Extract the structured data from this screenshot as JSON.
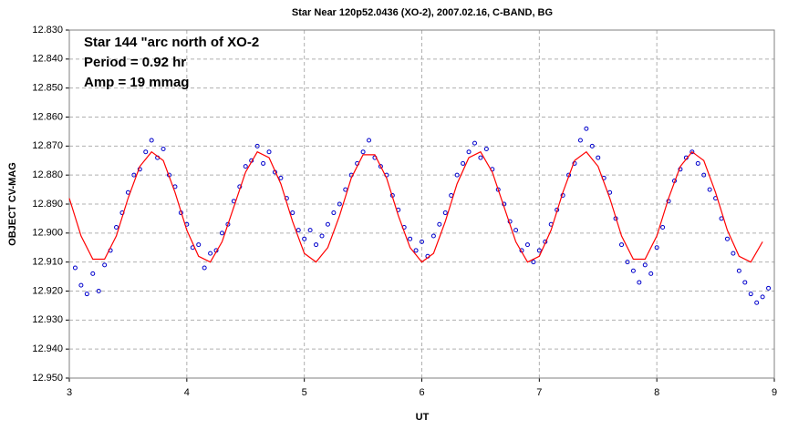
{
  "chart_data": {
    "type": "scatter",
    "title": "Star Near 120p52.0436 (XO-2), 2007.02.16, C-BAND, BG",
    "annotations": [
      "Star 144 \"arc north of XO-2",
      "Period = 0.92 hr",
      "Amp = 19 mmag"
    ],
    "xlabel": "UT",
    "ylabel": "OBJECT CV-MAG",
    "xlim": [
      3,
      9
    ],
    "xticks": [
      3,
      4,
      5,
      6,
      7,
      8,
      9
    ],
    "ylim": [
      12.95,
      12.83
    ],
    "yticks": [
      {
        "value": 12.83,
        "label": "12.830"
      },
      {
        "value": 12.84,
        "label": "12.840"
      },
      {
        "value": 12.85,
        "label": "12.850"
      },
      {
        "value": 12.86,
        "label": "12.860"
      },
      {
        "value": 12.87,
        "label": "12.870"
      },
      {
        "value": 12.88,
        "label": "12.880"
      },
      {
        "value": 12.89,
        "label": "12.890"
      },
      {
        "value": 12.9,
        "label": "12.900"
      },
      {
        "value": 12.91,
        "label": "12.910"
      },
      {
        "value": 12.92,
        "label": "12.920"
      },
      {
        "value": 12.93,
        "label": "12.930"
      },
      {
        "value": 12.94,
        "label": "12.940"
      },
      {
        "value": 12.95,
        "label": "12.950"
      }
    ],
    "grid": true,
    "series": [
      {
        "kind": "scatter",
        "color": "#0000cc",
        "x": [
          3.05,
          3.1,
          3.15,
          3.2,
          3.25,
          3.3,
          3.35,
          3.4,
          3.45,
          3.5,
          3.55,
          3.6,
          3.65,
          3.7,
          3.75,
          3.8,
          3.85,
          3.9,
          3.95,
          4.0,
          4.05,
          4.1,
          4.15,
          4.2,
          4.25,
          4.3,
          4.35,
          4.4,
          4.45,
          4.5,
          4.55,
          4.6,
          4.65,
          4.7,
          4.75,
          4.8,
          4.85,
          4.9,
          4.95,
          5.0,
          5.05,
          5.1,
          5.15,
          5.2,
          5.25,
          5.3,
          5.35,
          5.4,
          5.45,
          5.5,
          5.55,
          5.6,
          5.65,
          5.7,
          5.75,
          5.8,
          5.85,
          5.9,
          5.95,
          6.0,
          6.05,
          6.1,
          6.15,
          6.2,
          6.25,
          6.3,
          6.35,
          6.4,
          6.45,
          6.5,
          6.55,
          6.6,
          6.65,
          6.7,
          6.75,
          6.8,
          6.85,
          6.9,
          6.95,
          7.0,
          7.05,
          7.1,
          7.15,
          7.2,
          7.25,
          7.3,
          7.35,
          7.4,
          7.45,
          7.5,
          7.55,
          7.6,
          7.65,
          7.7,
          7.75,
          7.8,
          7.85,
          7.9,
          7.95,
          8.0,
          8.05,
          8.1,
          8.15,
          8.2,
          8.25,
          8.3,
          8.35,
          8.4,
          8.45,
          8.5,
          8.55,
          8.6,
          8.65,
          8.7,
          8.75,
          8.8,
          8.85,
          8.9,
          8.95
        ],
        "values": [
          12.912,
          12.918,
          12.921,
          12.914,
          12.92,
          12.911,
          12.906,
          12.898,
          12.893,
          12.886,
          12.88,
          12.878,
          12.872,
          12.868,
          12.874,
          12.871,
          12.88,
          12.884,
          12.893,
          12.897,
          12.905,
          12.904,
          12.912,
          12.907,
          12.906,
          12.9,
          12.897,
          12.889,
          12.884,
          12.877,
          12.875,
          12.87,
          12.876,
          12.872,
          12.879,
          12.881,
          12.888,
          12.893,
          12.899,
          12.902,
          12.899,
          12.904,
          12.901,
          12.897,
          12.893,
          12.89,
          12.885,
          12.88,
          12.876,
          12.872,
          12.868,
          12.874,
          12.877,
          12.88,
          12.887,
          12.892,
          12.898,
          12.902,
          12.906,
          12.903,
          12.908,
          12.901,
          12.897,
          12.893,
          12.887,
          12.88,
          12.876,
          12.872,
          12.869,
          12.874,
          12.871,
          12.878,
          12.885,
          12.89,
          12.896,
          12.899,
          12.906,
          12.904,
          12.91,
          12.906,
          12.903,
          12.897,
          12.892,
          12.887,
          12.88,
          12.876,
          12.868,
          12.864,
          12.87,
          12.874,
          12.881,
          12.886,
          12.895,
          12.904,
          12.91,
          12.913,
          12.917,
          12.911,
          12.914,
          12.905,
          12.898,
          12.889,
          12.882,
          12.878,
          12.874,
          12.872,
          12.876,
          12.88,
          12.885,
          12.888,
          12.895,
          12.902,
          12.907,
          12.913,
          12.917,
          12.921,
          12.924,
          12.922,
          12.919
        ]
      },
      {
        "kind": "line",
        "color": "#ff0000",
        "x": [
          3.0,
          3.1,
          3.2,
          3.3,
          3.4,
          3.5,
          3.6,
          3.7,
          3.8,
          3.9,
          4.0,
          4.1,
          4.2,
          4.3,
          4.4,
          4.5,
          4.6,
          4.7,
          4.8,
          4.9,
          5.0,
          5.1,
          5.2,
          5.3,
          5.4,
          5.5,
          5.6,
          5.7,
          5.8,
          5.9,
          6.0,
          6.1,
          6.2,
          6.3,
          6.4,
          6.5,
          6.6,
          6.7,
          6.8,
          6.9,
          7.0,
          7.1,
          7.2,
          7.3,
          7.4,
          7.5,
          7.6,
          7.7,
          7.8,
          7.9,
          8.0,
          8.1,
          8.2,
          8.3,
          8.4,
          8.5,
          8.6,
          8.7,
          8.8,
          8.9
        ],
        "values": [
          12.888,
          12.901,
          12.909,
          12.909,
          12.901,
          12.888,
          12.877,
          12.872,
          12.875,
          12.886,
          12.899,
          12.908,
          12.91,
          12.903,
          12.891,
          12.879,
          12.872,
          12.874,
          12.883,
          12.896,
          12.907,
          12.91,
          12.905,
          12.894,
          12.881,
          12.873,
          12.873,
          12.881,
          12.894,
          12.905,
          12.91,
          12.907,
          12.896,
          12.883,
          12.874,
          12.872,
          12.879,
          12.891,
          12.903,
          12.91,
          12.908,
          12.899,
          12.886,
          12.875,
          12.872,
          12.877,
          12.888,
          12.901,
          12.909,
          12.909,
          12.901,
          12.888,
          12.877,
          12.872,
          12.875,
          12.886,
          12.899,
          12.908,
          12.91,
          12.903
        ]
      }
    ]
  }
}
